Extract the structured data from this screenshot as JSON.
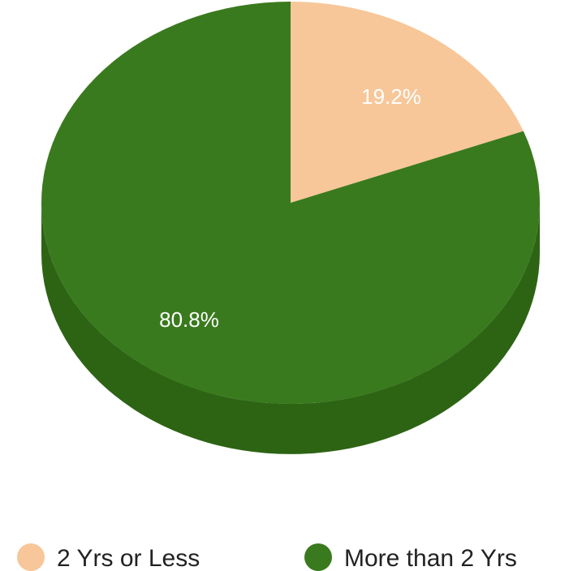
{
  "chart_data": {
    "type": "pie",
    "style": "3d",
    "slices": [
      {
        "label": "2 Yrs or Less",
        "value": 19.2,
        "display": "19.2%",
        "color": "#f7c799",
        "side_color": "#d8a878"
      },
      {
        "label": "More than 2 Yrs",
        "value": 80.8,
        "display": "80.8%",
        "color": "#3a7a1e",
        "side_color": "#2d6414"
      }
    ],
    "legend_position": "bottom"
  }
}
